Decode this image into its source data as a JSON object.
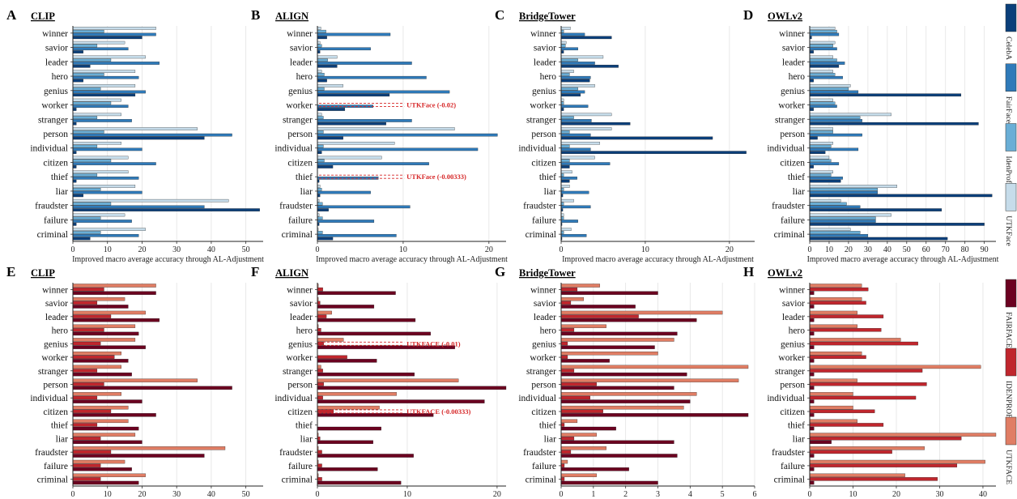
{
  "xlabel": "Improved macro average accuracy through AL-Adjustment",
  "categories": [
    "winner",
    "savior",
    "leader",
    "hero",
    "genius",
    "worker",
    "stranger",
    "person",
    "individual",
    "citizen",
    "thief",
    "liar",
    "fraudster",
    "failure",
    "criminal"
  ],
  "colors": {
    "blue": [
      "#c6dcea",
      "#6aaed6",
      "#2f7ab9",
      "#0b3f7a"
    ],
    "red": [
      "#e07d64",
      "#c0262d",
      "#6b0120"
    ]
  },
  "legend_blue": [
    "CelebA",
    "FairFace",
    "IdenProf",
    "UTKFace"
  ],
  "legend_red": [
    "FAIRFACE",
    "IDENPROF",
    "UTKFACE"
  ],
  "chart_data": [
    {
      "panel": "A",
      "title": "CLIP",
      "type": "bar",
      "orientation": "horizontal",
      "palette": "blue",
      "xlim": [
        0,
        55
      ],
      "xticks": [
        0,
        10,
        20,
        30,
        40,
        50
      ],
      "series": [
        {
          "values": [
            24,
            15,
            21,
            18,
            18,
            14,
            14,
            36,
            14,
            16,
            16,
            18,
            45,
            15,
            21
          ]
        },
        {
          "values": [
            9,
            7,
            11,
            9,
            8,
            11,
            7,
            9,
            7,
            11,
            7,
            8,
            11,
            8,
            8
          ]
        },
        {
          "values": [
            24,
            16,
            25,
            19,
            21,
            16,
            17,
            46,
            20,
            24,
            19,
            20,
            38,
            17,
            19
          ]
        },
        {
          "values": [
            20,
            3,
            5,
            3,
            18,
            1,
            1,
            38,
            1,
            1,
            1,
            3,
            54,
            1,
            5
          ]
        }
      ]
    },
    {
      "panel": "B",
      "title": "ALIGN",
      "type": "bar",
      "orientation": "horizontal",
      "palette": "blue",
      "xlim": [
        0,
        22
      ],
      "xticks": [
        0,
        10,
        20
      ],
      "series": [
        {
          "values": [
            0.4,
            0.3,
            2.3,
            0.5,
            3,
            0,
            0.5,
            16,
            9,
            7.5,
            0,
            0.3,
            0.2,
            0.2,
            0.1
          ]
        },
        {
          "values": [
            1,
            0.5,
            1.2,
            0.8,
            0.8,
            0,
            0.7,
            0.7,
            0.7,
            0.8,
            0,
            0.5,
            0.6,
            0.6,
            0.6
          ]
        },
        {
          "values": [
            8.5,
            6.2,
            11,
            12.7,
            15.4,
            6.5,
            11,
            21,
            18.7,
            13,
            7.1,
            6.2,
            10.8,
            6.6,
            9.2
          ]
        },
        {
          "values": [
            1.1,
            0.3,
            2.3,
            1.1,
            8.4,
            3.2,
            8,
            3,
            0.5,
            1.8,
            0.2,
            0.3,
            1.3,
            0.2,
            1.8
          ]
        }
      ],
      "annotations": [
        {
          "category": "worker",
          "text": "UTKFace (-0.02)"
        },
        {
          "category": "thief",
          "text": "UTKFace (-0.00333)"
        }
      ]
    },
    {
      "panel": "C",
      "title": "BridgeTower",
      "type": "bar",
      "orientation": "horizontal",
      "palette": "blue",
      "xlim": [
        0,
        23
      ],
      "xticks": [
        0,
        10,
        20
      ],
      "series": [
        {
          "values": [
            1.1,
            0.6,
            5,
            1.5,
            4,
            0.3,
            6,
            6,
            4.6,
            4,
            1.3,
            1,
            1.5,
            0.3,
            1.2
          ]
        },
        {
          "values": [
            0.3,
            0.5,
            2,
            1,
            2,
            0.3,
            1.5,
            1,
            1,
            1,
            0.3,
            0.3,
            0.3,
            0.3,
            0.3
          ]
        },
        {
          "values": [
            2.8,
            2,
            4,
            3.5,
            2.8,
            3.2,
            3.6,
            3.5,
            3.5,
            5.8,
            1.9,
            3.3,
            3.5,
            2,
            3
          ]
        },
        {
          "values": [
            6,
            0.3,
            6.8,
            3.4,
            2.3,
            0.3,
            8.2,
            18,
            22,
            1,
            1,
            0.2,
            0.2,
            0.1,
            0.1
          ]
        }
      ]
    },
    {
      "panel": "D",
      "title": "OWLv2",
      "type": "bar",
      "orientation": "horizontal",
      "palette": "blue",
      "xlim": [
        0,
        96
      ],
      "xticks": [
        0,
        10,
        20,
        30,
        40,
        50,
        60,
        70,
        80,
        90
      ],
      "series": [
        {
          "values": [
            13,
            13,
            12,
            12,
            21,
            12,
            42,
            12,
            12,
            10,
            12,
            45,
            16,
            42,
            21
          ]
        },
        {
          "values": [
            14,
            12,
            14,
            13,
            20,
            13,
            26,
            12,
            11,
            11,
            11,
            35,
            19,
            34,
            26
          ]
        },
        {
          "values": [
            15,
            14,
            18,
            17,
            25,
            14,
            27,
            27,
            25,
            15,
            17,
            35,
            26,
            34,
            30
          ]
        },
        {
          "values": [
            1,
            2,
            15,
            2,
            78,
            2,
            87,
            4,
            8,
            2,
            16,
            94,
            68,
            90,
            71
          ]
        }
      ]
    },
    {
      "panel": "E",
      "title": "CLIP",
      "type": "bar",
      "orientation": "horizontal",
      "palette": "red",
      "xlim": [
        0,
        55
      ],
      "xticks": [
        0,
        10,
        20,
        30,
        40,
        50
      ],
      "series": [
        {
          "values": [
            24,
            15,
            21,
            18,
            18,
            14,
            14,
            36,
            14,
            16,
            16,
            18,
            44,
            15,
            21
          ]
        },
        {
          "values": [
            9,
            7,
            11,
            9,
            8,
            12,
            7,
            9,
            7,
            11,
            7,
            8,
            11,
            8,
            8
          ]
        },
        {
          "values": [
            24,
            16,
            25,
            19,
            21,
            16,
            17,
            46,
            20,
            24,
            19,
            20,
            38,
            17,
            19
          ]
        }
      ]
    },
    {
      "panel": "F",
      "title": "ALIGN",
      "type": "bar",
      "orientation": "horizontal",
      "palette": "red",
      "xlim": [
        0,
        21
      ],
      "xticks": [
        0,
        10,
        20
      ],
      "series": [
        {
          "values": [
            0.1,
            0.1,
            1.6,
            0.1,
            2.9,
            0,
            0.4,
            15.7,
            8.8,
            6.9,
            0,
            0.1,
            0.1,
            0.1,
            0.1
          ]
        },
        {
          "values": [
            0.6,
            0.3,
            1,
            0.4,
            0.7,
            3.3,
            0.6,
            0.7,
            0.6,
            1.8,
            0,
            0.3,
            0.5,
            0.5,
            0.5
          ]
        },
        {
          "values": [
            8.7,
            6.3,
            10.9,
            12.6,
            15.3,
            6.6,
            10.8,
            21,
            18.6,
            12.9,
            7.1,
            6.2,
            10.7,
            6.7,
            9.3
          ]
        }
      ],
      "annotations": [
        {
          "category": "genius",
          "text": "UTKFACE (-0.01)"
        },
        {
          "category": "citizen",
          "text": "UTKFACE (-0.00333)"
        }
      ]
    },
    {
      "panel": "G",
      "title": "BridgeTower",
      "type": "bar",
      "orientation": "horizontal",
      "palette": "red",
      "xlim": [
        0,
        6
      ],
      "xticks": [
        0,
        1,
        2,
        3,
        4,
        5,
        6
      ],
      "series": [
        {
          "values": [
            1.2,
            0.7,
            5,
            1.4,
            3.5,
            3,
            5.8,
            5.5,
            4.2,
            3.8,
            0.5,
            1.1,
            1.4,
            0.2,
            1.1
          ]
        },
        {
          "values": [
            0.5,
            0.3,
            2.4,
            0.4,
            0.2,
            0.2,
            0.4,
            1.1,
            0.9,
            1.3,
            0.1,
            0.4,
            0.3,
            0.1,
            0.1
          ]
        },
        {
          "values": [
            3,
            2.3,
            4.2,
            3.6,
            2.9,
            1.5,
            3.9,
            3.5,
            4,
            5.8,
            1.7,
            3.5,
            3.6,
            2.1,
            3
          ]
        }
      ]
    },
    {
      "panel": "H",
      "title": "OWLv2",
      "type": "bar",
      "orientation": "horizontal",
      "palette": "red",
      "xlim": [
        0,
        43
      ],
      "xticks": [
        0,
        10,
        20,
        30,
        40
      ],
      "series": [
        {
          "values": [
            12,
            12,
            11,
            11,
            21,
            12,
            39.5,
            11,
            10,
            10,
            11,
            43,
            26.5,
            40.5,
            22
          ]
        },
        {
          "values": [
            13.5,
            13,
            17,
            16.5,
            25,
            13,
            26,
            27,
            24.5,
            15,
            17,
            35,
            19,
            34,
            29.5
          ]
        },
        {
          "values": [
            1,
            1,
            1,
            1,
            1,
            1,
            1,
            1,
            1,
            1,
            1,
            5,
            1,
            1,
            1
          ]
        }
      ]
    }
  ]
}
